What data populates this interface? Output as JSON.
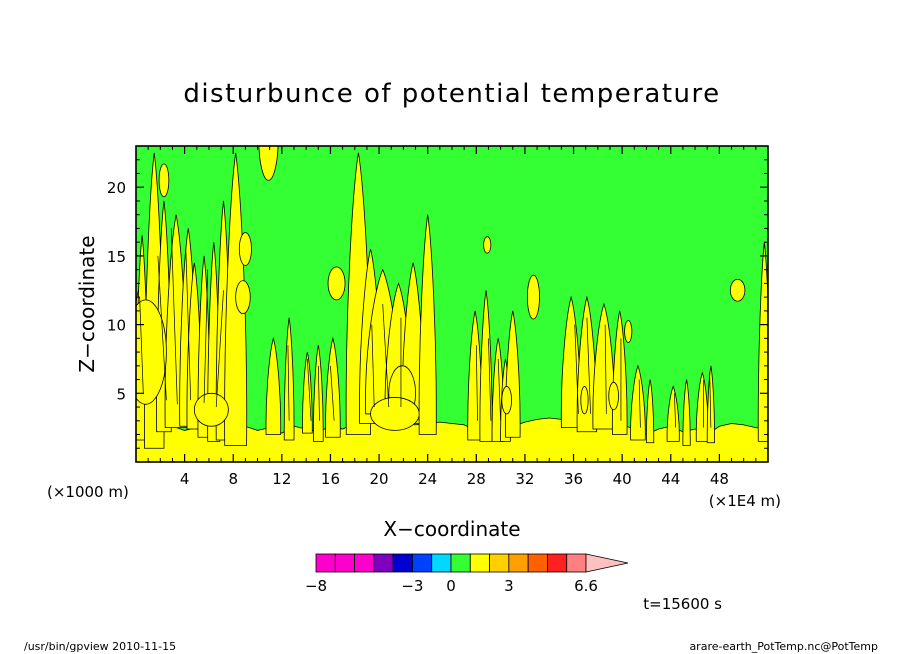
{
  "chart_data": {
    "type": "heatmap",
    "title": "disturbunce of potential temperature",
    "xlabel": "X−coordinate",
    "ylabel": "Z−coordinate",
    "x_unit_label": "(×1E4 m)",
    "y_unit_label": "(×1000 m)",
    "xlim": [
      0,
      52
    ],
    "ylim": [
      0,
      23
    ],
    "x_ticks": [
      4,
      8,
      12,
      16,
      20,
      24,
      28,
      32,
      36,
      40,
      44,
      48
    ],
    "y_ticks": [
      5,
      10,
      15,
      20
    ],
    "time_label": "t=15600 s",
    "colorbar": {
      "colors": [
        "#ff00cc",
        "#ff00cc",
        "#ff00cc",
        "#8000c0",
        "#0000d0",
        "#0040ff",
        "#00d8ff",
        "#33ff33",
        "#ffff00",
        "#ffd000",
        "#ffa000",
        "#ff6000",
        "#ff2020",
        "#ff8080"
      ],
      "extend_color": "#ffc0c0",
      "tick_labels": [
        "−8",
        "−3",
        "0",
        "3",
        "6.6"
      ],
      "tick_bins": [
        0,
        5,
        7,
        10,
        14
      ]
    },
    "background_color": "#33ff33",
    "contour_color": "#ffff00",
    "surface_band": [
      [
        0,
        2.0
      ],
      [
        1,
        2.4
      ],
      [
        2,
        2.2
      ],
      [
        3,
        2.6
      ],
      [
        4,
        2.3
      ],
      [
        5,
        2.5
      ],
      [
        6,
        2.1
      ],
      [
        7,
        2.6
      ],
      [
        8,
        2.2
      ],
      [
        9,
        2.6
      ],
      [
        10,
        2.3
      ],
      [
        11,
        2.5
      ],
      [
        12,
        2.1
      ],
      [
        13,
        2.6
      ],
      [
        14,
        2.4
      ],
      [
        15,
        2.2
      ],
      [
        16,
        2.6
      ],
      [
        17,
        2.4
      ],
      [
        18,
        2.8
      ],
      [
        19,
        2.9
      ],
      [
        20,
        2.8
      ],
      [
        21,
        2.7
      ],
      [
        22,
        2.8
      ],
      [
        23,
        2.7
      ],
      [
        24,
        2.8
      ],
      [
        25,
        2.9
      ],
      [
        26,
        2.8
      ],
      [
        27,
        2.7
      ],
      [
        28,
        2.3
      ],
      [
        29,
        2.4
      ],
      [
        30,
        2.0
      ],
      [
        31,
        2.6
      ],
      [
        32,
        2.9
      ],
      [
        33,
        3.1
      ],
      [
        34,
        3.2
      ],
      [
        35,
        3.1
      ],
      [
        36,
        2.9
      ],
      [
        37,
        2.8
      ],
      [
        38,
        2.9
      ],
      [
        39,
        2.8
      ],
      [
        40,
        2.7
      ],
      [
        41,
        2.4
      ],
      [
        42,
        2.0
      ],
      [
        43,
        2.4
      ],
      [
        44,
        2.6
      ],
      [
        45,
        2.2
      ],
      [
        46,
        2.4
      ],
      [
        47,
        2.0
      ],
      [
        48,
        2.6
      ],
      [
        49,
        2.8
      ],
      [
        50,
        2.7
      ],
      [
        51,
        2.5
      ],
      [
        52,
        2.4
      ]
    ],
    "plumes": [
      [
        0.2,
        0.8,
        12.5,
        2.2
      ],
      [
        0.5,
        0.5,
        16.5,
        1.6
      ],
      [
        1.5,
        0.8,
        22.5,
        1.0
      ],
      [
        2.3,
        0.6,
        19.0,
        2.2
      ],
      [
        3.3,
        0.9,
        18.0,
        2.5
      ],
      [
        4.3,
        0.7,
        17.0,
        2.6
      ],
      [
        4.8,
        0.6,
        14.5,
        2.4
      ],
      [
        5.6,
        0.5,
        15.0,
        1.8
      ],
      [
        6.4,
        0.5,
        16.0,
        1.5
      ],
      [
        7.2,
        0.6,
        19.0,
        1.6
      ],
      [
        8.2,
        0.9,
        22.5,
        1.2
      ],
      [
        11.3,
        0.6,
        9.0,
        2.0
      ],
      [
        12.6,
        0.4,
        10.5,
        1.6
      ],
      [
        14.1,
        0.4,
        8.0,
        2.1
      ],
      [
        15.0,
        0.4,
        8.5,
        1.5
      ],
      [
        16.2,
        0.6,
        9.0,
        1.8
      ],
      [
        18.3,
        1.0,
        22.5,
        2.0
      ],
      [
        19.3,
        0.9,
        15.5,
        2.8
      ],
      [
        20.3,
        1.4,
        14.0,
        3.5
      ],
      [
        21.6,
        1.1,
        13.0,
        3.0
      ],
      [
        22.8,
        0.9,
        14.5,
        2.8
      ],
      [
        24.0,
        0.7,
        18.0,
        2.0
      ],
      [
        27.9,
        0.6,
        11.0,
        1.6
      ],
      [
        28.8,
        0.5,
        12.5,
        1.5
      ],
      [
        29.8,
        0.5,
        9.0,
        1.5
      ],
      [
        30.4,
        0.4,
        7.5,
        1.5
      ],
      [
        31.0,
        0.6,
        11.0,
        1.8
      ],
      [
        35.8,
        0.8,
        12.0,
        2.5
      ],
      [
        37.1,
        0.8,
        12.0,
        2.2
      ],
      [
        38.5,
        0.9,
        11.5,
        2.4
      ],
      [
        39.8,
        0.6,
        11.0,
        2.0
      ],
      [
        41.3,
        0.6,
        7.0,
        1.6
      ],
      [
        42.3,
        0.3,
        6.0,
        1.4
      ],
      [
        44.2,
        0.5,
        5.5,
        1.5
      ],
      [
        45.3,
        0.3,
        6.0,
        1.2
      ],
      [
        46.6,
        0.5,
        6.5,
        1.5
      ],
      [
        47.3,
        0.3,
        7.0,
        1.4
      ],
      [
        51.7,
        0.5,
        16.0,
        1.5
      ]
    ],
    "blobs": [
      [
        0.8,
        1.7,
        8.0,
        3.8
      ],
      [
        2.3,
        0.4,
        20.5,
        1.2
      ],
      [
        6.2,
        1.4,
        3.8,
        1.2
      ],
      [
        8.8,
        0.6,
        12.0,
        1.2
      ],
      [
        9.0,
        0.5,
        15.5,
        1.2
      ],
      [
        10.9,
        0.8,
        23.5,
        3.0
      ],
      [
        16.5,
        0.7,
        13.0,
        1.2
      ],
      [
        21.9,
        1.1,
        5.0,
        2.0
      ],
      [
        21.3,
        2.0,
        3.5,
        1.2
      ],
      [
        28.9,
        0.3,
        15.8,
        0.6
      ],
      [
        30.5,
        0.4,
        4.5,
        1.0
      ],
      [
        32.7,
        0.5,
        12.0,
        1.6
      ],
      [
        36.9,
        0.3,
        4.5,
        1.0
      ],
      [
        39.3,
        0.4,
        4.8,
        1.0
      ],
      [
        40.5,
        0.3,
        9.5,
        0.8
      ],
      [
        49.5,
        0.6,
        12.5,
        0.8
      ]
    ],
    "thin_lines": [
      [
        0.6,
        5.0,
        0.3,
        12.0
      ],
      [
        2.5,
        4.5,
        1.8,
        15.0
      ],
      [
        3.4,
        4.2,
        2.9,
        17.0
      ],
      [
        4.5,
        4.5,
        4.1,
        15.5
      ],
      [
        5.6,
        4.3,
        5.9,
        14.0
      ],
      [
        6.6,
        4.0,
        7.2,
        12.5
      ],
      [
        12.6,
        3.0,
        12.5,
        8.5
      ],
      [
        14.4,
        3.0,
        14.1,
        7.5
      ],
      [
        15.1,
        3.0,
        15.0,
        7.0
      ],
      [
        16.3,
        3.0,
        16.0,
        7.0
      ],
      [
        19.6,
        4.0,
        19.4,
        10.0
      ],
      [
        20.8,
        4.0,
        20.3,
        11.5
      ],
      [
        21.8,
        4.0,
        21.8,
        10.5
      ],
      [
        28.1,
        3.0,
        28.0,
        8.5
      ],
      [
        29.2,
        3.0,
        29.0,
        9.0
      ],
      [
        30.0,
        3.0,
        29.8,
        7.5
      ],
      [
        36.4,
        3.5,
        36.1,
        10.0
      ],
      [
        37.4,
        3.5,
        37.1,
        10.5
      ],
      [
        38.7,
        3.5,
        38.6,
        10.0
      ],
      [
        39.9,
        3.0,
        39.9,
        9.0
      ],
      [
        41.5,
        2.5,
        41.4,
        6.0
      ],
      [
        44.4,
        2.5,
        44.3,
        5.0
      ],
      [
        46.7,
        2.5,
        46.7,
        6.0
      ],
      [
        47.3,
        2.5,
        47.2,
        6.5
      ]
    ]
  },
  "footer": {
    "left": "/usr/bin/gpview   2010-11-15",
    "right": "arare-earth_PotTemp.nc@PotTemp"
  }
}
